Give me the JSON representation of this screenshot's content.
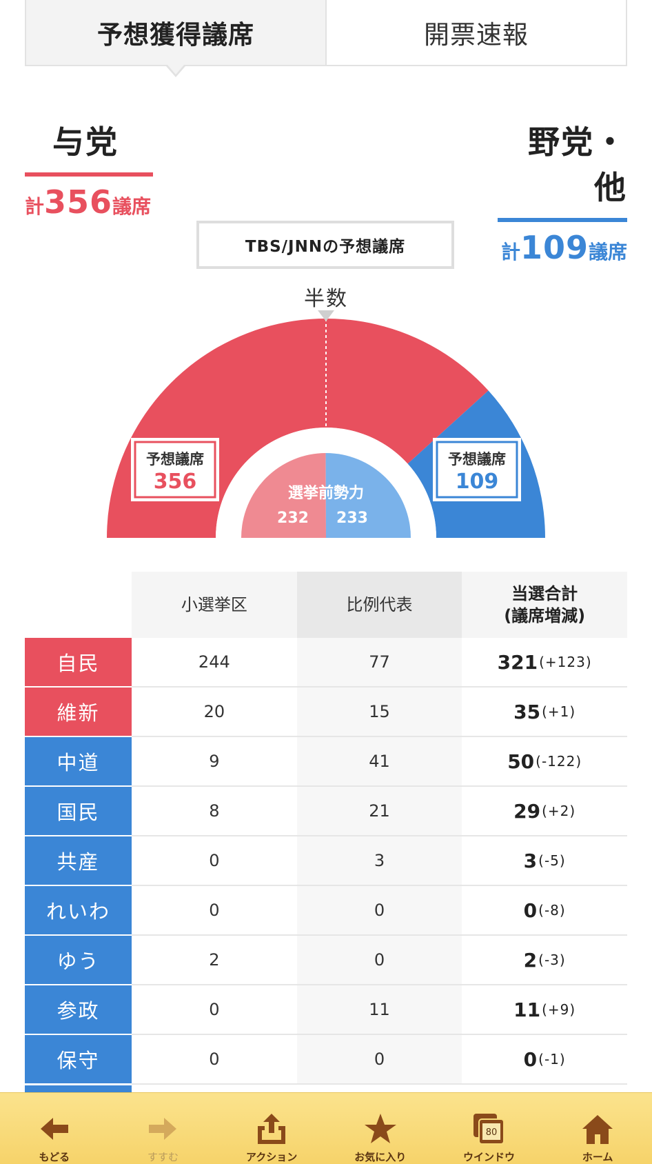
{
  "tabs": {
    "forecast": "予想獲得議席",
    "results": "開票速報"
  },
  "ruling": {
    "name": "与党",
    "total_prefix": "計",
    "total": "356",
    "total_suffix": "議席",
    "color": "#e8505e"
  },
  "opposition": {
    "name": "野党・他",
    "total_prefix": "計",
    "total": "109",
    "total_suffix": "議席",
    "color": "#3b86d6"
  },
  "chart_data": {
    "type": "pie",
    "title": "TBS/JNNの予想議席",
    "half_label": "半数",
    "forecast_label": "予想議席",
    "slices": [
      {
        "name": "与党",
        "value": 356,
        "color": "#e8505e"
      },
      {
        "name": "野党・他",
        "value": 109,
        "color": "#3b86d6"
      }
    ],
    "pre_election": {
      "label": "選挙前勢力",
      "ruling": 232,
      "opposition": 233,
      "ruling_color": "#ef8a92",
      "opposition_color": "#7ab2ea"
    }
  },
  "table": {
    "headers": [
      "小選挙区",
      "比例代表",
      "当選合計\n(議席増減)"
    ],
    "rows": [
      {
        "party": "自民",
        "side": "ruling",
        "district": "244",
        "pr": "77",
        "total": "321",
        "change": "(+123)"
      },
      {
        "party": "維新",
        "side": "ruling",
        "district": "20",
        "pr": "15",
        "total": "35",
        "change": "(+1)"
      },
      {
        "party": "中道",
        "side": "opp",
        "district": "9",
        "pr": "41",
        "total": "50",
        "change": "(-122)"
      },
      {
        "party": "国民",
        "side": "opp",
        "district": "8",
        "pr": "21",
        "total": "29",
        "change": "(+2)"
      },
      {
        "party": "共産",
        "side": "opp",
        "district": "0",
        "pr": "3",
        "total": "3",
        "change": "(-5)"
      },
      {
        "party": "れいわ",
        "side": "opp",
        "district": "0",
        "pr": "0",
        "total": "0",
        "change": "(-8)"
      },
      {
        "party": "ゆう",
        "side": "opp",
        "district": "2",
        "pr": "0",
        "total": "2",
        "change": "(-3)"
      },
      {
        "party": "参政",
        "side": "opp",
        "district": "0",
        "pr": "11",
        "total": "11",
        "change": "(+9)"
      },
      {
        "party": "保守",
        "side": "opp",
        "district": "0",
        "pr": "0",
        "total": "0",
        "change": "(-1)"
      }
    ]
  },
  "toolbar": {
    "back": {
      "label": "もどる",
      "icon": "arrow-left-icon"
    },
    "forward": {
      "label": "すすむ",
      "icon": "arrow-right-icon"
    },
    "action": {
      "label": "アクション",
      "icon": "share-icon"
    },
    "favorites": {
      "label": "お気に入り",
      "icon": "star-icon"
    },
    "window": {
      "label": "ウインドウ",
      "icon": "windows-icon",
      "count": "80"
    },
    "home": {
      "label": "ホーム",
      "icon": "home-icon"
    }
  }
}
